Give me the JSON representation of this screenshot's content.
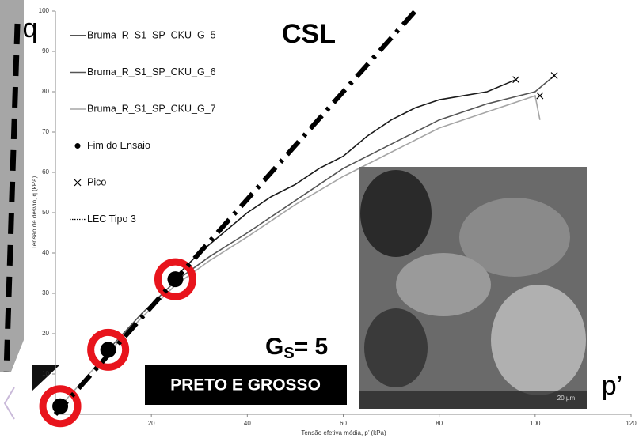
{
  "chart_data": {
    "type": "line",
    "y_label": "Tensão de desvio, q (kPa)",
    "x_label": "Tensão efetiva média, p’ (kPa)",
    "xlim": [
      0,
      120
    ],
    "xticks": [
      20,
      40,
      60,
      80,
      100,
      120
    ],
    "ylim": [
      0,
      100
    ],
    "yticks": [
      10,
      20,
      30,
      40,
      50,
      60,
      70,
      80,
      90,
      100
    ],
    "series": [
      {
        "name": "Bruma_R_S1_SP_CKU_G_5",
        "color": "#1a1a1a",
        "kind": "line",
        "x": [
          25,
          30,
          35,
          40,
          45,
          50,
          55,
          60,
          65,
          70,
          75,
          80,
          85,
          90,
          96
        ],
        "values": [
          34,
          40,
          45,
          50,
          54,
          57,
          61,
          64,
          69,
          73,
          76,
          78,
          79,
          80,
          83
        ]
      },
      {
        "name": "Bruma_R_S1_SP_CKU_G_6",
        "color": "#555555",
        "kind": "line",
        "x": [
          11,
          18,
          25,
          32,
          40,
          50,
          60,
          70,
          80,
          90,
          100,
          104
        ],
        "values": [
          16,
          25,
          33,
          39,
          45,
          53,
          61,
          67,
          73,
          77,
          80,
          84
        ]
      },
      {
        "name": "Bruma_R_S1_SP_CKU_G_7",
        "color": "#a6a6a6",
        "kind": "line",
        "x": [
          1,
          10,
          18,
          25,
          32,
          40,
          50,
          60,
          70,
          80,
          90,
          100,
          101
        ],
        "values": [
          2,
          14,
          24,
          32,
          38,
          44,
          52,
          59,
          65,
          71,
          75,
          79,
          73
        ]
      },
      {
        "name": "Fim do Ensaio",
        "color": "#000000",
        "kind": "point",
        "x": [
          1,
          11,
          25
        ],
        "values": [
          2,
          16,
          33.5
        ]
      },
      {
        "name": "Pico",
        "color": "#000000",
        "kind": "cross",
        "x": [
          96,
          104,
          101
        ],
        "values": [
          83,
          84,
          79
        ]
      },
      {
        "name": "LEC Tipo 3",
        "color": "#000000",
        "kind": "dashed",
        "x": [
          0,
          75
        ],
        "values": [
          0,
          100
        ]
      }
    ],
    "annotations": {
      "q": "q",
      "p": "p’",
      "csl": "CSL",
      "gs_main": "G",
      "gs_sub": "S",
      "gs_rest": "= 5",
      "box": "PRETO E GROSSO",
      "scale": "20 µm"
    }
  }
}
